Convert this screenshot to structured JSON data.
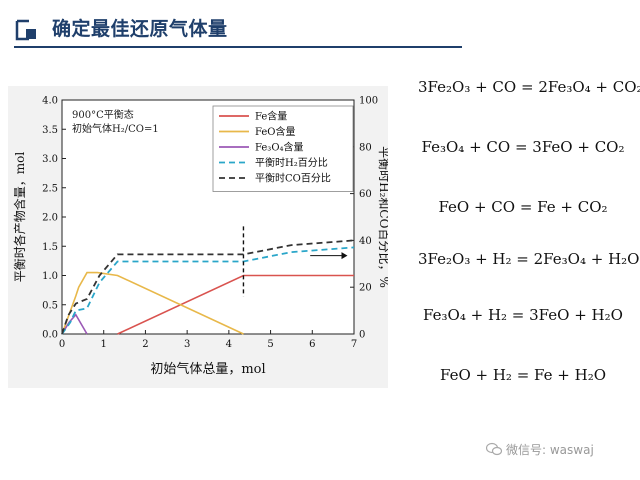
{
  "header": {
    "title": "确定最佳还原气体量"
  },
  "chart_data": {
    "type": "line",
    "annotation_lines": [
      "900°C平衡态",
      "初始气体H₂/CO=1"
    ],
    "xlabel": "初始气体总量，mol",
    "ylabel_left": "平衡时各产物含量，mol",
    "ylabel_right": "平衡时H₂和CO百分比，%",
    "xlim": [
      0,
      7
    ],
    "ylim_left": [
      0,
      4.0
    ],
    "ylim_right": [
      0,
      100
    ],
    "xticks": [
      "0",
      "1",
      "2",
      "3",
      "4",
      "5",
      "6",
      "7"
    ],
    "yticks_left": [
      "0.0",
      "0.5",
      "1.0",
      "1.5",
      "2.0",
      "2.5",
      "3.0",
      "3.5",
      "4.0"
    ],
    "yticks_right": [
      "0",
      "20",
      "40",
      "60",
      "80",
      "100"
    ],
    "grid": false,
    "legend_position": "top-right",
    "vline_x": 4.35,
    "series": [
      {
        "name": "Fe含量",
        "axis": "left",
        "color": "#d9534f",
        "dash": "solid",
        "points": [
          [
            1.33,
            0
          ],
          [
            4.35,
            1.0
          ],
          [
            7,
            1.0
          ]
        ]
      },
      {
        "name": "FeO含量",
        "axis": "left",
        "color": "#e8b84a",
        "dash": "solid",
        "points": [
          [
            0,
            0
          ],
          [
            0.33,
            0.65
          ],
          [
            0.4,
            0.8
          ],
          [
            0.6,
            1.05
          ],
          [
            0.85,
            1.05
          ],
          [
            1.33,
            1.0
          ],
          [
            4.35,
            0
          ]
        ]
      },
      {
        "name": "Fe₃O₄含量",
        "axis": "left",
        "color": "#9b59b6",
        "dash": "solid",
        "points": [
          [
            0,
            0
          ],
          [
            0.17,
            0.2
          ],
          [
            0.33,
            0.33
          ],
          [
            0.6,
            0
          ]
        ]
      },
      {
        "name": "平衡时H₂百分比",
        "axis": "right",
        "color": "#2aa6c9",
        "dash": "dashed",
        "points": [
          [
            0,
            0
          ],
          [
            0.2,
            5
          ],
          [
            0.33,
            10
          ],
          [
            0.6,
            11
          ],
          [
            0.9,
            22
          ],
          [
            1.33,
            31
          ],
          [
            2.5,
            31
          ],
          [
            4.35,
            31
          ],
          [
            5.5,
            35
          ],
          [
            7,
            37
          ]
        ]
      },
      {
        "name": "平衡时CO百分比",
        "axis": "right",
        "color": "#333333",
        "dash": "dashed",
        "points": [
          [
            0,
            0
          ],
          [
            0.15,
            8
          ],
          [
            0.33,
            13
          ],
          [
            0.6,
            15
          ],
          [
            0.9,
            25
          ],
          [
            1.33,
            34
          ],
          [
            2.5,
            34
          ],
          [
            4.35,
            34
          ],
          [
            5.5,
            38
          ],
          [
            7,
            40
          ]
        ]
      }
    ]
  },
  "equations": [
    "3Fe₂O₃ + CO = 2Fe₃O₄ + CO₂",
    "Fe₃O₄ + CO = 3FeO + CO₂",
    "FeO + CO = Fe + CO₂",
    "3Fe₂O₃ + H₂ = 2Fe₃O₄ + H₂O",
    "Fe₃O₄ + H₂ = 3FeO + H₂O",
    "FeO + H₂ = Fe + H₂O"
  ],
  "watermark": "微信号: waswaj",
  "icons": {
    "header": "bracket-square-icon",
    "watermark": "wechat-icon"
  }
}
